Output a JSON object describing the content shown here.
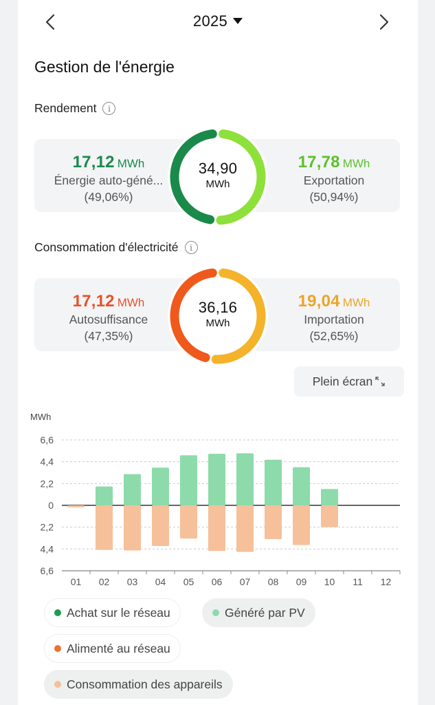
{
  "header": {
    "year": "2025"
  },
  "title": "Gestion de l'énergie",
  "rendement": {
    "label": "Rendement",
    "left": {
      "value": "17,12",
      "unit": "MWh",
      "label": "Énergie auto-géné...",
      "pct": "(49,06%)"
    },
    "center": {
      "value": "34,90",
      "unit": "MWh"
    },
    "right": {
      "value": "17,78",
      "unit": "MWh",
      "label": "Exportation",
      "pct": "(50,94%)"
    },
    "colors": {
      "left": "#1a8a4a",
      "right": "#8ee03a"
    },
    "split": 0.4906
  },
  "consommation": {
    "label": "Consommation d'électricité",
    "left": {
      "value": "17,12",
      "unit": "MWh",
      "label": "Autosuffisance",
      "pct": "(47,35%)"
    },
    "center": {
      "value": "36,16",
      "unit": "MWh"
    },
    "right": {
      "value": "19,04",
      "unit": "MWh",
      "label": "Importation",
      "pct": "(52,65%)"
    },
    "colors": {
      "left": "#f0591c",
      "right": "#f4b32b"
    },
    "split": 0.4735
  },
  "fullscreen_label": "Plein écran",
  "legend": [
    {
      "label": "Achat sur le réseau",
      "color": "#1e9a55",
      "style": "outline"
    },
    {
      "label": "Généré par PV",
      "color": "#8ddbab",
      "style": "filled"
    },
    {
      "label": "Alimenté au réseau",
      "color": "#e8732a",
      "style": "outline"
    },
    {
      "label": "Consommation des appareils",
      "color": "#f5c09a",
      "style": "filled"
    }
  ],
  "chart_data": {
    "type": "bar",
    "ylabel": "MWh",
    "categories": [
      "01",
      "02",
      "03",
      "04",
      "05",
      "06",
      "07",
      "08",
      "09",
      "10",
      "11",
      "12"
    ],
    "yticks": [
      "6,6",
      "4,4",
      "2,2",
      "0",
      "2,2",
      "4,4",
      "6,6"
    ],
    "ylim": [
      -6.6,
      6.6
    ],
    "series": [
      {
        "name": "Généré par PV",
        "color": "#8ddbab",
        "values": [
          0,
          1.9,
          3.15,
          3.8,
          5.05,
          5.2,
          5.25,
          4.6,
          3.85,
          1.65,
          0,
          0
        ]
      },
      {
        "name": "Consommation des appareils",
        "color": "#f5c09a",
        "values": [
          -0.2,
          -4.5,
          -4.55,
          -4.1,
          -3.35,
          -4.6,
          -4.7,
          -3.4,
          -4.0,
          -2.2,
          0,
          0
        ]
      }
    ]
  }
}
